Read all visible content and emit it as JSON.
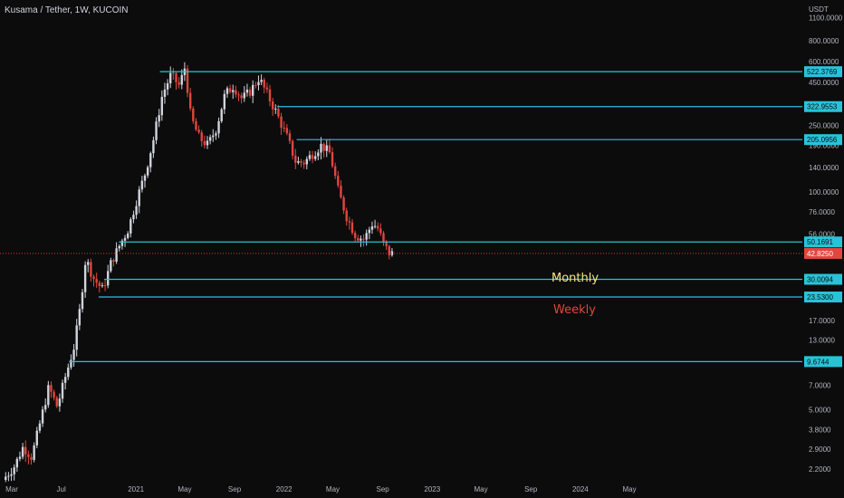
{
  "header": {
    "title": "Kusama / Tether, 1W, KUCOIN",
    "unit": "USDT"
  },
  "annotations": {
    "monthly": "Monthly",
    "weekly": "Weekly"
  },
  "colors": {
    "background": "#0c0c0d",
    "up": "#d1d4dc",
    "down": "#e2463e",
    "level_line": "#29c3d8",
    "price_label_bg": "#e2463e",
    "axis_text": "#b2b5be"
  },
  "chart_data": {
    "type": "candlestick",
    "scale": "log",
    "ylim": [
      1.9,
      1400
    ],
    "xlim": [
      "2020-02-01",
      "2025-07-01"
    ],
    "y_ticks": [
      "2.2000",
      "2.9000",
      "3.8000",
      "5.0000",
      "7.0000",
      "9.6000",
      "13.0000",
      "17.0000",
      "30.0000",
      "56.0000",
      "76.0000",
      "100.0000",
      "140.0000",
      "190.0000",
      "250.0000",
      "450.0000",
      "600.0000",
      "800.0000",
      "1100.0000"
    ],
    "x_ticks": [
      {
        "label": "Mar",
        "date": "2020-03-01"
      },
      {
        "label": "Jul",
        "date": "2020-07-01"
      },
      {
        "label": "2021",
        "date": "2021-01-01"
      },
      {
        "label": "May",
        "date": "2021-05-01"
      },
      {
        "label": "Sep",
        "date": "2021-09-01"
      },
      {
        "label": "2022",
        "date": "2022-01-01"
      },
      {
        "label": "May",
        "date": "2022-05-01"
      },
      {
        "label": "Sep",
        "date": "2022-09-01"
      },
      {
        "label": "2023",
        "date": "2023-01-01"
      },
      {
        "label": "May",
        "date": "2023-05-01"
      },
      {
        "label": "Sep",
        "date": "2023-09-01"
      },
      {
        "label": "2024",
        "date": "2024-01-01"
      },
      {
        "label": "May",
        "date": "2024-05-01"
      }
    ],
    "levels": [
      {
        "value": 522.3769,
        "label": "522.3769",
        "start": "2021-03-01"
      },
      {
        "value": 322.9553,
        "label": "322.9553",
        "start": "2021-12-15"
      },
      {
        "value": 205.0956,
        "label": "205.0956",
        "start": "2022-02-01"
      },
      {
        "value": 50.1691,
        "label": "50.1691",
        "start": "2020-11-20"
      },
      {
        "value": 30.0094,
        "label": "30.0094",
        "start": "2020-10-15"
      },
      {
        "value": 23.53,
        "label": "23.5300",
        "start": "2020-10-01"
      },
      {
        "value": 9.6744,
        "label": "9.6744",
        "start": "2020-07-20"
      }
    ],
    "current_price": {
      "value": 42.825,
      "label": "42.8250"
    },
    "anchors": [
      [
        "2020-02-15",
        1.9
      ],
      [
        "2020-03-15",
        2.3
      ],
      [
        "2020-04-05",
        3.0
      ],
      [
        "2020-04-26",
        2.6
      ],
      [
        "2020-05-17",
        4.2
      ],
      [
        "2020-06-07",
        6.8
      ],
      [
        "2020-06-28",
        5.2
      ],
      [
        "2020-07-19",
        8.0
      ],
      [
        "2020-08-09",
        12.0
      ],
      [
        "2020-08-23",
        20.0
      ],
      [
        "2020-09-06",
        40.0
      ],
      [
        "2020-09-27",
        30.0
      ],
      [
        "2020-10-18",
        26.0
      ],
      [
        "2020-11-08",
        38.0
      ],
      [
        "2020-11-29",
        48.0
      ],
      [
        "2020-12-20",
        60.0
      ],
      [
        "2021-01-10",
        90.0
      ],
      [
        "2021-01-31",
        130.0
      ],
      [
        "2021-02-21",
        210.0
      ],
      [
        "2021-03-14",
        380.0
      ],
      [
        "2021-04-04",
        500.0
      ],
      [
        "2021-04-25",
        430.0
      ],
      [
        "2021-05-09",
        560.0
      ],
      [
        "2021-05-23",
        280.0
      ],
      [
        "2021-06-13",
        210.0
      ],
      [
        "2021-07-04",
        190.0
      ],
      [
        "2021-07-25",
        240.0
      ],
      [
        "2021-08-15",
        380.0
      ],
      [
        "2021-09-05",
        430.0
      ],
      [
        "2021-09-26",
        360.0
      ],
      [
        "2021-10-17",
        400.0
      ],
      [
        "2021-11-07",
        480.0
      ],
      [
        "2021-11-28",
        380.0
      ],
      [
        "2021-12-19",
        300.0
      ],
      [
        "2022-01-16",
        210.0
      ],
      [
        "2022-02-06",
        150.0
      ],
      [
        "2022-02-27",
        150.0
      ],
      [
        "2022-03-20",
        170.0
      ],
      [
        "2022-04-10",
        190.0
      ],
      [
        "2022-05-01",
        170.0
      ],
      [
        "2022-05-22",
        100.0
      ],
      [
        "2022-06-12",
        70.0
      ],
      [
        "2022-07-03",
        55.0
      ],
      [
        "2022-07-24",
        52.0
      ],
      [
        "2022-08-14",
        65.0
      ],
      [
        "2022-08-28",
        60.0
      ],
      [
        "2022-09-11",
        48.0
      ],
      [
        "2022-09-25",
        42.8
      ]
    ]
  }
}
